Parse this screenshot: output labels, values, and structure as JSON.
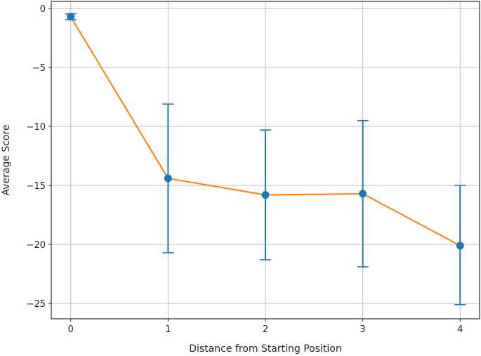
{
  "chart_data": {
    "type": "line",
    "xlabel": "Distance from Starting Position",
    "ylabel": "Average Score",
    "x": [
      0,
      1,
      2,
      3,
      4
    ],
    "series": [
      {
        "values": [
          -0.7,
          -14.4,
          -15.8,
          -15.7,
          -20.1
        ],
        "error_low": [
          -0.95,
          -20.7,
          -21.3,
          -21.9,
          -25.1
        ],
        "error_high": [
          -0.45,
          -8.1,
          -10.3,
          -9.5,
          -15.0
        ],
        "line_color": "#ff7f0e",
        "marker_color": "#1f77b4"
      }
    ],
    "xticks": [
      "0",
      "1",
      "2",
      "3",
      "4"
    ],
    "yticks": [
      "0",
      "−5",
      "−10",
      "−15",
      "−20",
      "−25"
    ],
    "ytick_values": [
      0,
      -5,
      -10,
      -15,
      -20,
      -25
    ],
    "xlim": [
      -0.2,
      4.2
    ],
    "ylim": [
      -26.3,
      0.6
    ],
    "grid": true
  }
}
